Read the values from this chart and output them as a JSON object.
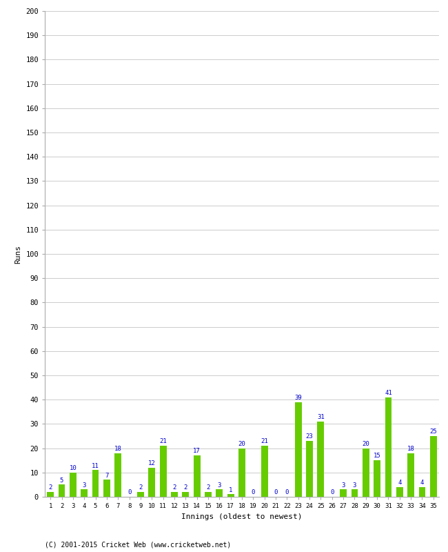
{
  "innings": [
    1,
    2,
    3,
    4,
    5,
    6,
    7,
    8,
    9,
    10,
    11,
    12,
    13,
    14,
    15,
    16,
    17,
    18,
    19,
    20,
    21,
    22,
    23,
    24,
    25,
    26,
    27,
    28,
    29,
    30,
    31,
    32,
    33,
    34,
    35
  ],
  "runs": [
    2,
    5,
    10,
    3,
    11,
    7,
    18,
    0,
    2,
    12,
    21,
    2,
    2,
    17,
    2,
    3,
    1,
    20,
    0,
    21,
    0,
    0,
    39,
    23,
    31,
    0,
    3,
    3,
    20,
    15,
    41,
    4,
    18,
    4,
    25
  ],
  "bar_color": "#66cc00",
  "label_color": "#0000cc",
  "ylabel": "Runs",
  "xlabel": "Innings (oldest to newest)",
  "ylim": [
    0,
    200
  ],
  "yticks": [
    0,
    10,
    20,
    30,
    40,
    50,
    60,
    70,
    80,
    90,
    100,
    110,
    120,
    130,
    140,
    150,
    160,
    170,
    180,
    190,
    200
  ],
  "background_color": "#ffffff",
  "grid_color": "#cccccc",
  "footer": "(C) 2001-2015 Cricket Web (www.cricketweb.net)"
}
